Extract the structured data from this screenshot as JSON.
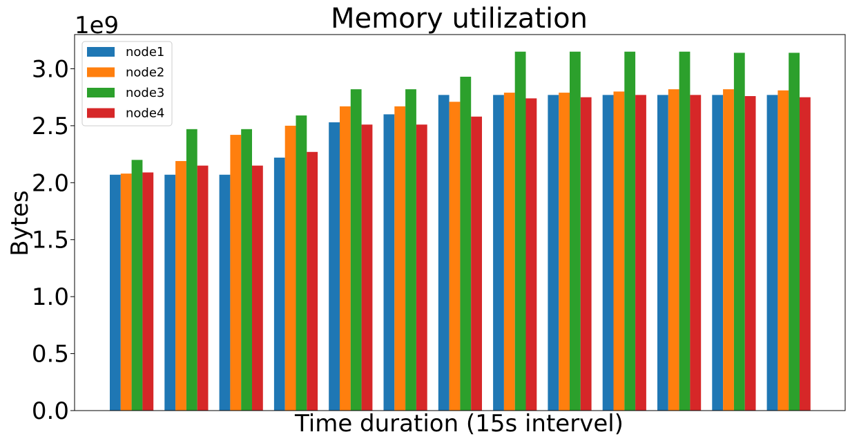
{
  "chart_data": {
    "type": "bar",
    "title": "Memory utilization",
    "xlabel": "Time duration (15s intervel)",
    "ylabel": "Bytes",
    "y_offset_label": "1e9",
    "ylim": [
      0,
      3.3
    ],
    "yticks": [
      "0.0",
      "0.5",
      "1.0",
      "1.5",
      "2.0",
      "2.5",
      "3.0"
    ],
    "grid": false,
    "legend_position": "upper-left",
    "series": [
      {
        "name": "node1",
        "color": "#1f77b4",
        "values": [
          2.07,
          2.07,
          2.07,
          2.22,
          2.53,
          2.6,
          2.77,
          2.77,
          2.77,
          2.77,
          2.77,
          2.77,
          2.77
        ]
      },
      {
        "name": "node2",
        "color": "#ff7f0e",
        "values": [
          2.08,
          2.19,
          2.42,
          2.5,
          2.67,
          2.67,
          2.71,
          2.79,
          2.79,
          2.8,
          2.82,
          2.82,
          2.81
        ]
      },
      {
        "name": "node3",
        "color": "#2ca02c",
        "values": [
          2.2,
          2.47,
          2.47,
          2.59,
          2.82,
          2.82,
          2.93,
          3.15,
          3.15,
          3.15,
          3.15,
          3.14,
          3.14
        ]
      },
      {
        "name": "node4",
        "color": "#d62728",
        "values": [
          2.09,
          2.15,
          2.15,
          2.27,
          2.51,
          2.51,
          2.58,
          2.74,
          2.75,
          2.77,
          2.77,
          2.76,
          2.75
        ]
      }
    ]
  }
}
